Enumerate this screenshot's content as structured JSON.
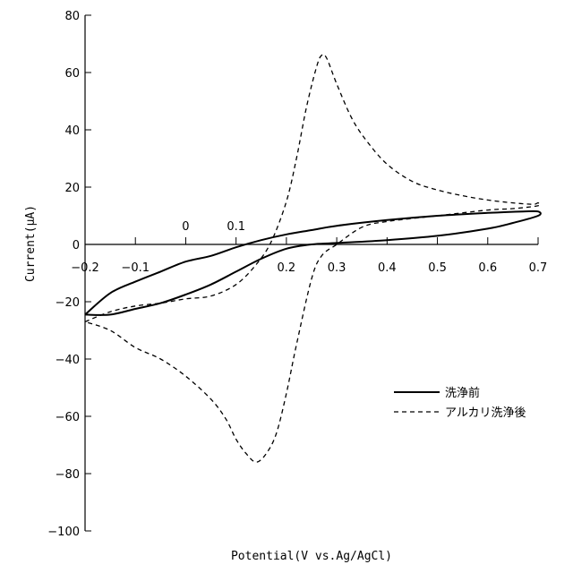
{
  "chart_data": {
    "type": "line",
    "title": "",
    "xlabel": "Potential(V vs.Ag/AgCl)",
    "ylabel": "Current(μA)",
    "xlim": [
      -0.2,
      0.7
    ],
    "ylim": [
      -100,
      80
    ],
    "x_ticks": [
      -0.2,
      -0.1,
      0,
      0.1,
      0.2,
      0.3,
      0.4,
      0.5,
      0.6,
      0.7
    ],
    "x_tick_labels": [
      "−0.2",
      "−0.1",
      "0",
      "0.1",
      "0.2",
      "0.3",
      "0.4",
      "0.5",
      "0.6",
      "0.7"
    ],
    "y_ticks": [
      -100,
      -80,
      -60,
      -40,
      -20,
      0,
      20,
      40,
      60,
      80
    ],
    "y_tick_labels": [
      "−100",
      "−80",
      "−60",
      "−40",
      "−20",
      "0",
      "20",
      "40",
      "60",
      "80"
    ],
    "grid": false,
    "legend_position": "lower-right",
    "series": [
      {
        "name": "洗浄前",
        "style": "solid",
        "color": "#000000",
        "x": [
          -0.2,
          -0.15,
          -0.1,
          -0.05,
          0.0,
          0.05,
          0.1,
          0.15,
          0.2,
          0.25,
          0.3,
          0.4,
          0.5,
          0.6,
          0.67,
          0.7,
          0.7,
          0.65,
          0.6,
          0.5,
          0.4,
          0.3,
          0.25,
          0.2,
          0.15,
          0.1,
          0.05,
          0.0,
          -0.05,
          -0.1,
          -0.15,
          -0.2
        ],
        "y": [
          -24.5,
          -17,
          -13,
          -9.5,
          -6,
          -4,
          -1,
          1.5,
          3.5,
          5,
          6.5,
          8.5,
          10,
          11,
          11.5,
          11.5,
          10,
          7.5,
          5.5,
          3,
          1.5,
          0.5,
          0,
          -1.5,
          -5,
          -9.5,
          -14,
          -17.5,
          -20.5,
          -22.5,
          -24.5,
          -24.5
        ]
      },
      {
        "name": "アルカリ洗浄後",
        "style": "dashed",
        "color": "#000000",
        "x": [
          -0.2,
          -0.15,
          -0.1,
          -0.05,
          0.0,
          0.05,
          0.1,
          0.14,
          0.17,
          0.2,
          0.22,
          0.24,
          0.26,
          0.27,
          0.28,
          0.3,
          0.33,
          0.36,
          0.4,
          0.45,
          0.5,
          0.55,
          0.6,
          0.65,
          0.69,
          0.7,
          0.7,
          0.65,
          0.6,
          0.5,
          0.4,
          0.35,
          0.3,
          0.27,
          0.25,
          0.22,
          0.2,
          0.18,
          0.16,
          0.14,
          0.12,
          0.1,
          0.08,
          0.05,
          0.0,
          -0.05,
          -0.1,
          -0.15,
          -0.2
        ],
        "y": [
          -27,
          -23.5,
          -21.5,
          -20.5,
          -19,
          -18,
          -14,
          -7,
          1,
          15,
          30,
          48,
          62,
          66,
          65,
          56,
          44,
          36,
          28,
          22,
          19,
          17,
          15.5,
          14.5,
          14,
          14.5,
          13.5,
          12.5,
          12,
          10,
          8,
          6,
          0,
          -4,
          -12,
          -35,
          -52,
          -66,
          -73,
          -76,
          -73,
          -68,
          -61,
          -54,
          -46,
          -40,
          -36,
          -30,
          -27
        ]
      }
    ]
  }
}
